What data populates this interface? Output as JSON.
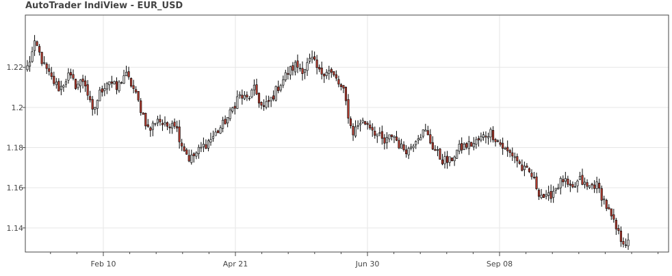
{
  "title": "AutoTrader IndiView - EUR_USD",
  "chart_data": {
    "type": "candlestick",
    "title": "AutoTrader IndiView - EUR_USD",
    "xlabel": "",
    "ylabel": "",
    "ylim": [
      1.128,
      1.246
    ],
    "y_ticks": [
      1.14,
      1.16,
      1.18,
      1.2,
      1.22
    ],
    "y_tick_labels": [
      "1.14",
      "1.16",
      "1.18",
      "1.2",
      "1.22"
    ],
    "x_tick_labels": [
      "Feb 10",
      "Apr 21",
      "Jun 30",
      "Sep 08"
    ],
    "grid": true,
    "legend": false,
    "colors": {
      "up": "#d3d3d3",
      "down": "#b03a2e",
      "wick": "#000000",
      "grid": "#e6e6e6",
      "axis": "#444444"
    },
    "close_path": [
      1.22,
      1.232,
      1.221,
      1.214,
      1.209,
      1.216,
      1.211,
      1.214,
      1.197,
      1.208,
      1.214,
      1.209,
      1.217,
      1.21,
      1.199,
      1.188,
      1.195,
      1.19,
      1.194,
      1.182,
      1.174,
      1.178,
      1.182,
      1.186,
      1.191,
      1.197,
      1.206,
      1.204,
      1.209,
      1.199,
      1.204,
      1.211,
      1.217,
      1.221,
      1.219,
      1.224,
      1.217,
      1.219,
      1.214,
      1.207,
      1.187,
      1.193,
      1.192,
      1.187,
      1.182,
      1.187,
      1.18,
      1.179,
      1.186,
      1.188,
      1.18,
      1.174,
      1.173,
      1.179,
      1.181,
      1.182,
      1.185,
      1.188,
      1.183,
      1.178,
      1.176,
      1.169,
      1.167,
      1.158,
      1.154,
      1.16,
      1.164,
      1.158,
      1.164,
      1.16,
      1.162,
      1.154,
      1.144,
      1.135,
      1.132
    ]
  }
}
